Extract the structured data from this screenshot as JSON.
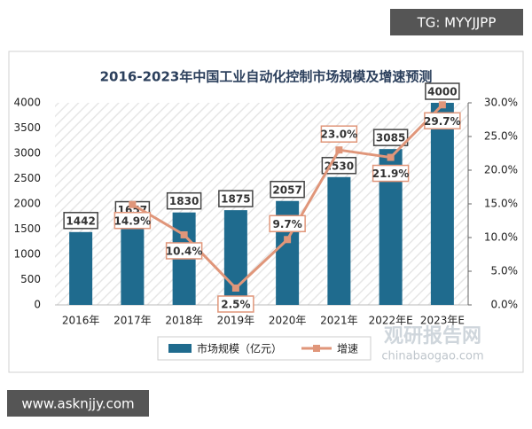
{
  "chart_data": {
    "type": "bar",
    "title": "2016-2023年中国工业自动化控制市场规模及增速预测",
    "categories": [
      "2016年",
      "2017年",
      "2018年",
      "2019年",
      "2020年",
      "2021年",
      "2022年E",
      "2023年E"
    ],
    "series": [
      {
        "name": "市场规模（亿元）",
        "color": "#1f6b8e",
        "values": [
          1442,
          1657,
          1830,
          1875,
          2057,
          2530,
          3085,
          4000
        ]
      },
      {
        "name": "增速",
        "type": "line",
        "axis": "y2",
        "color": "#e0967a",
        "values": [
          null,
          14.9,
          10.4,
          2.5,
          9.7,
          23.0,
          21.9,
          29.7
        ],
        "value_labels": [
          null,
          "14.9%",
          "10.4%",
          "2.5%",
          "9.7%",
          "23.0%",
          "21.9%",
          "29.7%"
        ]
      }
    ],
    "ylim": [
      0,
      4000
    ],
    "yticks": [
      0,
      500,
      1000,
      1500,
      2000,
      2500,
      3000,
      3500,
      4000
    ],
    "y2lim": [
      0,
      30
    ],
    "y2ticks": [
      {
        "value": 0,
        "label": "0.0%"
      },
      {
        "value": 5,
        "label": "5.0%"
      },
      {
        "value": 10,
        "label": "10.0%"
      },
      {
        "value": 15,
        "label": "15.0%"
      },
      {
        "value": 20,
        "label": "20.0%"
      },
      {
        "value": 25,
        "label": "25.0%"
      },
      {
        "value": 30,
        "label": "30.0%"
      }
    ],
    "legend": "bottom"
  },
  "watermarks": {
    "top": "TG: MYYJJPP",
    "brand": "观研报告网",
    "site": "chinabaogao.com",
    "bottom": "www.asknjjy.com"
  }
}
